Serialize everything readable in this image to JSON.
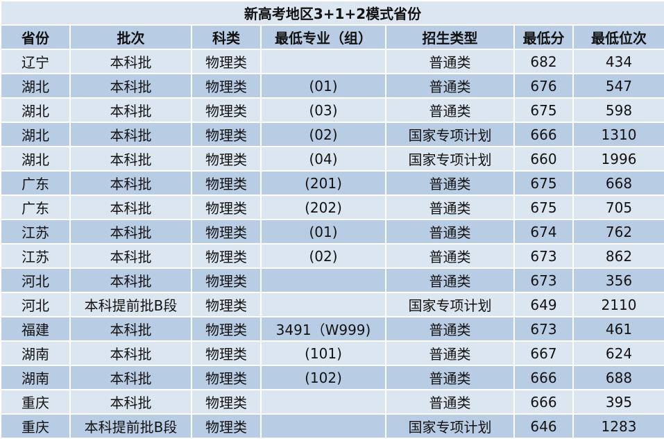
{
  "title": "新高考地区3+1+2模式省份",
  "headers": [
    "省份",
    "批次",
    "科类",
    "最低专业（组）",
    "招生类型",
    "最低分",
    "最低位次"
  ],
  "rows": [
    [
      "辽宁",
      "本科批",
      "物理类",
      "",
      "普通类",
      "682",
      "434"
    ],
    [
      "湖北",
      "本科批",
      "物理类",
      "(01)",
      "普通类",
      "676",
      "547"
    ],
    [
      "湖北",
      "本科批",
      "物理类",
      "(03)",
      "普通类",
      "675",
      "598"
    ],
    [
      "湖北",
      "本科批",
      "物理类",
      "(02)",
      "国家专项计划",
      "666",
      "1310"
    ],
    [
      "湖北",
      "本科批",
      "物理类",
      "(04)",
      "国家专项计划",
      "660",
      "1996"
    ],
    [
      "广东",
      "本科批",
      "物理类",
      "(201)",
      "普通类",
      "675",
      "668"
    ],
    [
      "广东",
      "本科批",
      "物理类",
      "(202)",
      "普通类",
      "675",
      "705"
    ],
    [
      "江苏",
      "本科批",
      "物理类",
      "(01)",
      "普通类",
      "674",
      "762"
    ],
    [
      "江苏",
      "本科批",
      "物理类",
      "(02)",
      "普通类",
      "673",
      "862"
    ],
    [
      "河北",
      "本科批",
      "物理类",
      "",
      "普通类",
      "673",
      "356"
    ],
    [
      "河北",
      "本科提前批B段",
      "物理类",
      "",
      "国家专项计划",
      "649",
      "2110"
    ],
    [
      "福建",
      "本科批",
      "物理类",
      "3491（W999)",
      "普通类",
      "673",
      "461"
    ],
    [
      "湖南",
      "本科批",
      "物理类",
      "(101)",
      "普通类",
      "667",
      "624"
    ],
    [
      "湖南",
      "本科批",
      "物理类",
      "(102)",
      "普通类",
      "666",
      "688"
    ],
    [
      "重庆",
      "本科批",
      "物理类",
      "",
      "普通类",
      "666",
      "395"
    ],
    [
      "重庆",
      "本科提前批B段",
      "物理类",
      "",
      "国家专项计划",
      "646",
      "1283"
    ]
  ],
  "colors": {
    "light_row": "#dce6f1",
    "dark_row": "#b8cce4",
    "border": "#ffffff"
  }
}
